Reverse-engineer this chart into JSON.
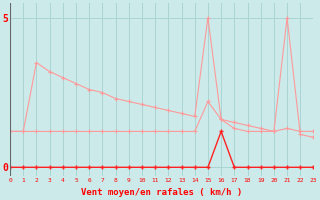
{
  "x": [
    0,
    1,
    2,
    3,
    4,
    5,
    6,
    7,
    8,
    9,
    10,
    11,
    12,
    13,
    14,
    15,
    16,
    17,
    18,
    19,
    20,
    21,
    22,
    23
  ],
  "rafales_line1": [
    1.2,
    1.2,
    3.5,
    3.2,
    3.0,
    2.8,
    2.6,
    2.5,
    2.3,
    2.2,
    2.1,
    2.0,
    1.9,
    1.8,
    1.7,
    5.0,
    1.6,
    1.5,
    1.4,
    1.3,
    1.2,
    5.0,
    1.1,
    1.0
  ],
  "rafales_line2": [
    1.2,
    1.2,
    1.2,
    1.2,
    1.2,
    1.2,
    1.2,
    1.2,
    1.2,
    1.2,
    1.2,
    1.2,
    1.2,
    1.2,
    1.2,
    2.2,
    1.6,
    1.3,
    1.2,
    1.2,
    1.2,
    1.3,
    1.2,
    1.2
  ],
  "vent_moyen": [
    0.0,
    0.0,
    0.0,
    0.0,
    0.0,
    0.0,
    0.0,
    0.0,
    0.0,
    0.0,
    0.0,
    0.0,
    0.0,
    0.0,
    0.0,
    0.0,
    1.2,
    0.0,
    0.0,
    0.0,
    0.0,
    0.0,
    0.0,
    0.0
  ],
  "background_color": "#cceaea",
  "grid_color": "#aad4d4",
  "line1_color": "#ff9999",
  "line2_color": "#ff2222",
  "xlabel": "Vent moyen/en rafales ( km/h )",
  "xlim": [
    0,
    23
  ],
  "ylim": [
    -0.3,
    5.5
  ],
  "ytick_vals": [
    0,
    5
  ],
  "xticks": [
    0,
    1,
    2,
    3,
    4,
    5,
    6,
    7,
    8,
    9,
    10,
    11,
    12,
    13,
    14,
    15,
    16,
    17,
    18,
    19,
    20,
    21,
    22,
    23
  ]
}
